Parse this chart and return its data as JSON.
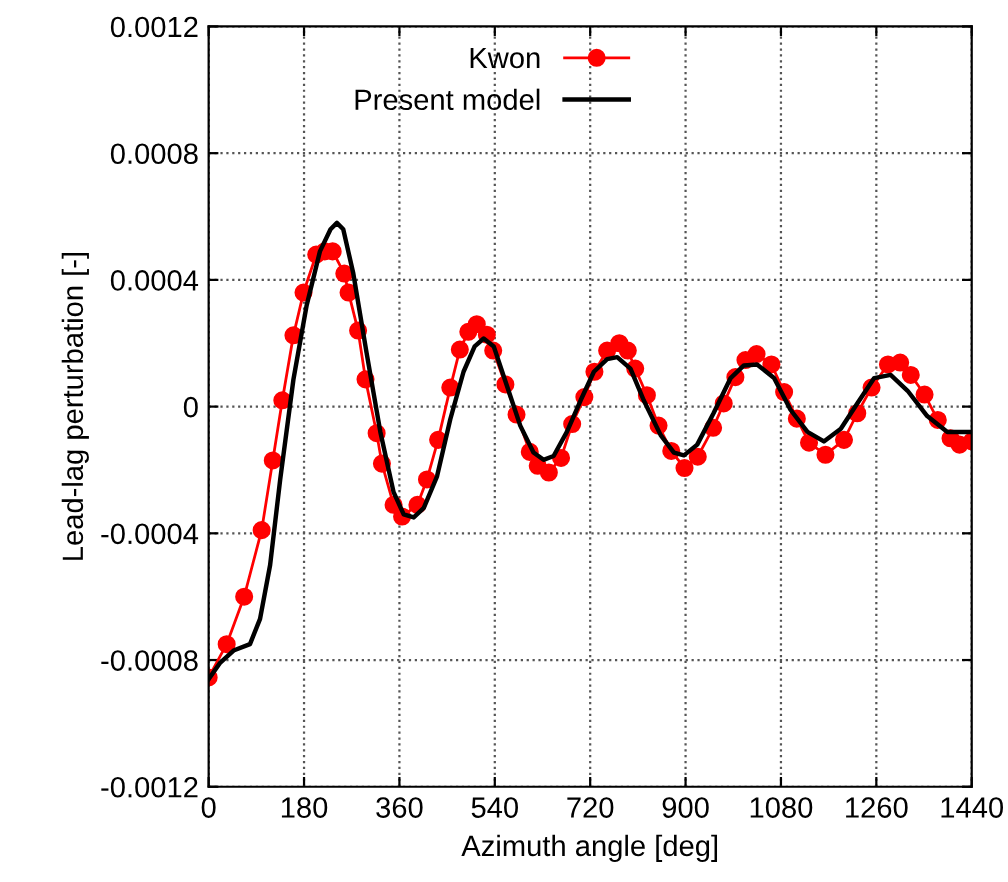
{
  "chart_data": {
    "type": "line",
    "xlabel": "Azimuth angle [deg]",
    "ylabel": "Lead-lag perturbation [-]",
    "xlim": [
      0,
      1440
    ],
    "xticks": [
      0,
      180,
      360,
      540,
      720,
      900,
      1080,
      1260,
      1440
    ],
    "ylim": [
      -0.0012,
      0.0012
    ],
    "yticks": [
      -0.0012,
      -0.0008,
      -0.0004,
      0,
      0.0004,
      0.0008,
      0.0012
    ],
    "grid": true,
    "legend": "top",
    "series": [
      {
        "name": "Kwon",
        "color": "#ff0000",
        "marker": "circle",
        "x": [
          0,
          34,
          67,
          100,
          121,
          139,
          160,
          179,
          203,
          219,
          234,
          256,
          264,
          282,
          296,
          317,
          327,
          349,
          365,
          394,
          412,
          433,
          456,
          474,
          490,
          506,
          525,
          537,
          560,
          581,
          606,
          621,
          642,
          665,
          686,
          709,
          728,
          752,
          775,
          791,
          805,
          827,
          849,
          873,
          898,
          923,
          952,
          972,
          994,
          1013,
          1034,
          1062,
          1086,
          1110,
          1133,
          1164,
          1199,
          1224,
          1251,
          1282,
          1305,
          1325,
          1351,
          1376,
          1400,
          1417,
          1440
        ],
        "values": [
          -0.000855,
          -0.00075,
          -0.0006,
          -0.00039,
          -0.00017,
          2e-05,
          0.000225,
          0.00036,
          0.00048,
          0.00049,
          0.00049,
          0.00042,
          0.00036,
          0.00024,
          8.6e-05,
          -8.4e-05,
          -0.00018,
          -0.00031,
          -0.000347,
          -0.00031,
          -0.00023,
          -0.000105,
          6e-05,
          0.00018,
          0.000236,
          0.00026,
          0.000227,
          0.000177,
          7e-05,
          -2.5e-05,
          -0.000143,
          -0.000187,
          -0.000208,
          -0.000162,
          -5.5e-05,
          3e-05,
          0.00011,
          0.000177,
          0.0002,
          0.000177,
          0.00012,
          3.6e-05,
          -6e-05,
          -0.00014,
          -0.000194,
          -0.000158,
          -6.7e-05,
          1e-05,
          9.3e-05,
          0.000147,
          0.000166,
          0.000133,
          4.6e-05,
          -3.8e-05,
          -0.000114,
          -0.000152,
          -0.000105,
          -2.1e-05,
          6e-05,
          0.000133,
          0.000139,
          0.0001,
          3.8e-05,
          -4.2e-05,
          -0.0001,
          -0.00012,
          -0.00011
        ]
      },
      {
        "name": "Present model",
        "color": "#000000",
        "marker": "none",
        "x": [
          0,
          21,
          47,
          78,
          97,
          116,
          135,
          160,
          185,
          210,
          230,
          242,
          254,
          273,
          298,
          324,
          349,
          368,
          387,
          406,
          431,
          456,
          481,
          502,
          519,
          538,
          563,
          588,
          613,
          632,
          651,
          676,
          702,
          727,
          752,
          771,
          796,
          821,
          853,
          878,
          897,
          922,
          953,
          985,
          1010,
          1035,
          1067,
          1098,
          1130,
          1161,
          1193,
          1224,
          1256,
          1287,
          1319,
          1356,
          1394,
          1419,
          1440
        ],
        "values": [
          -0.00086,
          -0.00081,
          -0.00077,
          -0.00075,
          -0.00067,
          -0.0005,
          -0.00023,
          8.6e-05,
          0.00032,
          0.00049,
          0.00056,
          0.00058,
          0.00056,
          0.00042,
          0.00017,
          -8e-05,
          -0.00027,
          -0.00034,
          -0.00035,
          -0.00032,
          -0.00022,
          -4e-05,
          0.00011,
          0.00019,
          0.000215,
          0.00019,
          6.5e-05,
          -6e-05,
          -0.000145,
          -0.000168,
          -0.000156,
          -8e-05,
          2e-05,
          0.00011,
          0.00015,
          0.000156,
          0.00012,
          2e-05,
          -9e-05,
          -0.000145,
          -0.000154,
          -0.00012,
          -2e-05,
          9e-05,
          0.00013,
          0.000133,
          9e-05,
          -1e-05,
          -8e-05,
          -0.00011,
          -7e-05,
          1e-05,
          9e-05,
          0.0001,
          5e-05,
          -3e-05,
          -8e-05,
          -8e-05,
          -8e-05
        ]
      }
    ]
  }
}
